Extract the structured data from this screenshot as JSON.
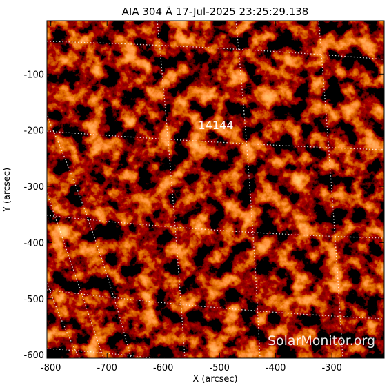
{
  "chart_data": {
    "type": "image",
    "title": "AIA 304 Å 17-Jul-2025 23:25:29.138",
    "xlabel": "X (arcsec)",
    "ylabel": "Y (arcsec)",
    "annotations": [
      "14144"
    ],
    "watermark": "SolarMonitor.org",
    "xlim": [
      -807,
      -207
    ],
    "ylim": [
      -606,
      -5
    ],
    "xticks": [
      -800,
      -700,
      -600,
      -500,
      -400,
      -300
    ],
    "yticks": [
      -600,
      -500,
      -400,
      -300,
      -200,
      -100
    ]
  }
}
